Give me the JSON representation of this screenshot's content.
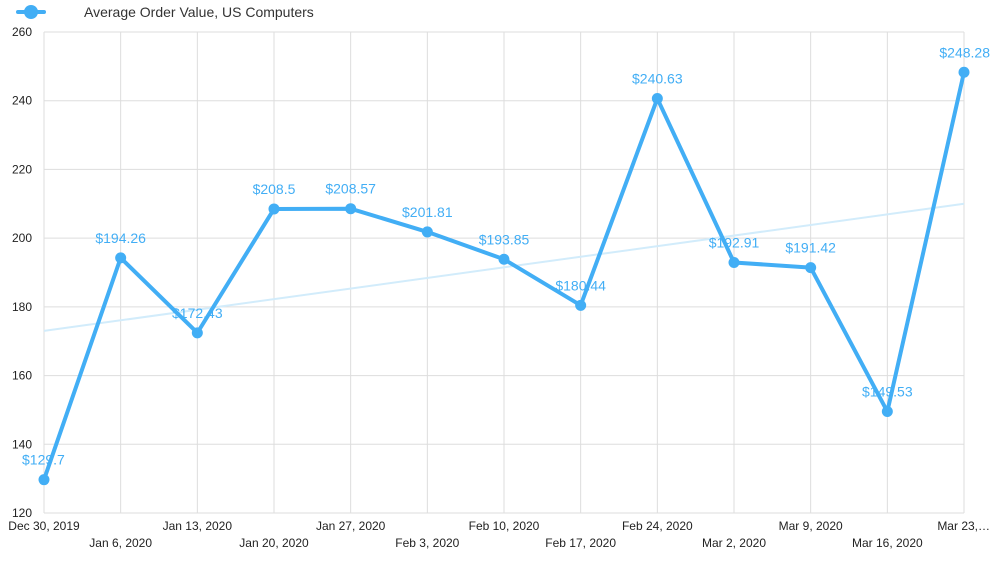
{
  "legend": {
    "series_label": "Average Order Value, US Computers"
  },
  "colors": {
    "series": "#42aef5",
    "trendline": "#d2ecfb",
    "grid": "#dddddd"
  },
  "chart_data": {
    "type": "line",
    "title": "",
    "xlabel": "",
    "ylabel": "",
    "ylim": [
      120,
      260
    ],
    "y_ticks": [
      120,
      140,
      160,
      180,
      200,
      220,
      240,
      260
    ],
    "grid": true,
    "legend_position": "top-left",
    "categories": [
      "Dec 30, 2019",
      "Jan 6, 2020",
      "Jan 13, 2020",
      "Jan 20, 2020",
      "Jan 27, 2020",
      "Feb 3, 2020",
      "Feb 10, 2020",
      "Feb 17, 2020",
      "Feb 24, 2020",
      "Mar 2, 2020",
      "Mar 9, 2020",
      "Mar 16, 2020",
      "Mar 23,…"
    ],
    "series": [
      {
        "name": "Average Order Value, US Computers",
        "values": [
          129.7,
          194.26,
          172.43,
          208.5,
          208.57,
          201.81,
          193.85,
          180.44,
          240.63,
          192.91,
          191.42,
          149.53,
          248.28
        ],
        "data_labels": [
          "$129.7",
          "$194.26",
          "$172.43",
          "$208.5",
          "$208.57",
          "$201.81",
          "$193.85",
          "$180.44",
          "$240.63",
          "$192.91",
          "$191.42",
          "$149.53",
          "$248.28"
        ]
      }
    ],
    "trendline": {
      "start": 173,
      "end": 210
    }
  }
}
